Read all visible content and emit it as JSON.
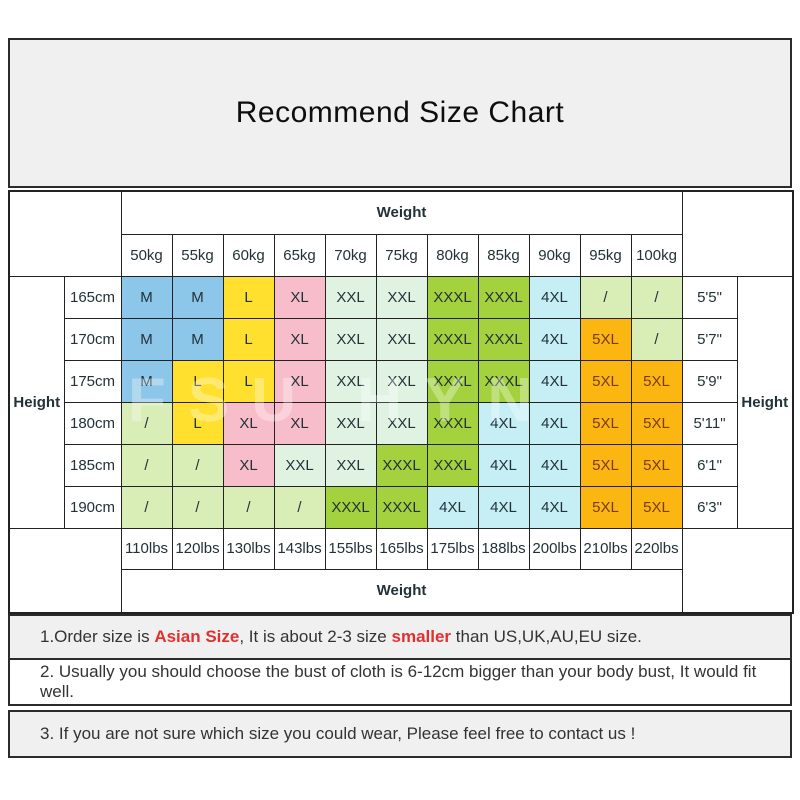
{
  "title": "Recommend Size Chart",
  "watermark": "FSU HYN",
  "table": {
    "weight_label_top": "Weight",
    "weight_label_bottom": "Weight",
    "height_label_left": "Height",
    "height_label_right": "Height",
    "weights_kg": [
      "50kg",
      "55kg",
      "60kg",
      "65kg",
      "70kg",
      "75kg",
      "80kg",
      "85kg",
      "90kg",
      "95kg",
      "100kg"
    ],
    "weights_lbs": [
      "110lbs",
      "120lbs",
      "130lbs",
      "143lbs",
      "155lbs",
      "165lbs",
      "175lbs",
      "188lbs",
      "200lbs",
      "210lbs",
      "220lbs"
    ],
    "rows": [
      {
        "height_cm": "165cm",
        "height_imperial": "5'5\"",
        "sizes": [
          "M",
          "M",
          "L",
          "XL",
          "XXL",
          "XXL",
          "XXXL",
          "XXXL",
          "4XL",
          "/",
          "/"
        ]
      },
      {
        "height_cm": "170cm",
        "height_imperial": "5'7\"",
        "sizes": [
          "M",
          "M",
          "L",
          "XL",
          "XXL",
          "XXL",
          "XXXL",
          "XXXL",
          "4XL",
          "5XL",
          "/"
        ]
      },
      {
        "height_cm": "175cm",
        "height_imperial": "5'9\"",
        "sizes": [
          "M",
          "L",
          "L",
          "XL",
          "XXL",
          "XXL",
          "XXXL",
          "XXXL",
          "4XL",
          "5XL",
          "5XL"
        ]
      },
      {
        "height_cm": "180cm",
        "height_imperial": "5'11\"",
        "sizes": [
          "/",
          "L",
          "XL",
          "XL",
          "XXL",
          "XXL",
          "XXXL",
          "4XL",
          "4XL",
          "5XL",
          "5XL"
        ]
      },
      {
        "height_cm": "185cm",
        "height_imperial": "6'1\"",
        "sizes": [
          "/",
          "/",
          "XL",
          "XXL",
          "XXL",
          "XXXL",
          "XXXL",
          "4XL",
          "4XL",
          "5XL",
          "5XL"
        ]
      },
      {
        "height_cm": "190cm",
        "height_imperial": "6'3\"",
        "sizes": [
          "/",
          "/",
          "/",
          "/",
          "XXXL",
          "XXXL",
          "4XL",
          "4XL",
          "4XL",
          "5XL",
          "5XL"
        ]
      }
    ]
  },
  "size_colors": {
    "M": "#8cc6e8",
    "L": "#ffe02e",
    "XL": "#f8bdcb",
    "XXL": "#e0f3e3",
    "XXXL": "#a3d23e",
    "4XL": "#c6eff5",
    "5XL": "#fcb612",
    "slash": "#d9edb6"
  },
  "size_text_colors": {
    "5XL": "#7a3a10",
    "default": "#223238"
  },
  "notes": [
    {
      "segments": [
        {
          "text": "1.Order size is ",
          "red": false
        },
        {
          "text": "Asian Size",
          "red": true
        },
        {
          "text": ", It is about 2-3 size ",
          "red": false
        },
        {
          "text": "smaller",
          "red": true
        },
        {
          "text": " than US,UK,AU,EU size.",
          "red": false
        }
      ]
    },
    {
      "segments": [
        {
          "text": "2. Usually you should choose the bust of cloth is 6-12cm bigger than your body bust, It would fit well.",
          "red": false
        }
      ]
    },
    {
      "segments": [
        {
          "text": "3. If you are not sure which size you could wear, Please feel free to contact us !",
          "red": false
        }
      ]
    }
  ]
}
